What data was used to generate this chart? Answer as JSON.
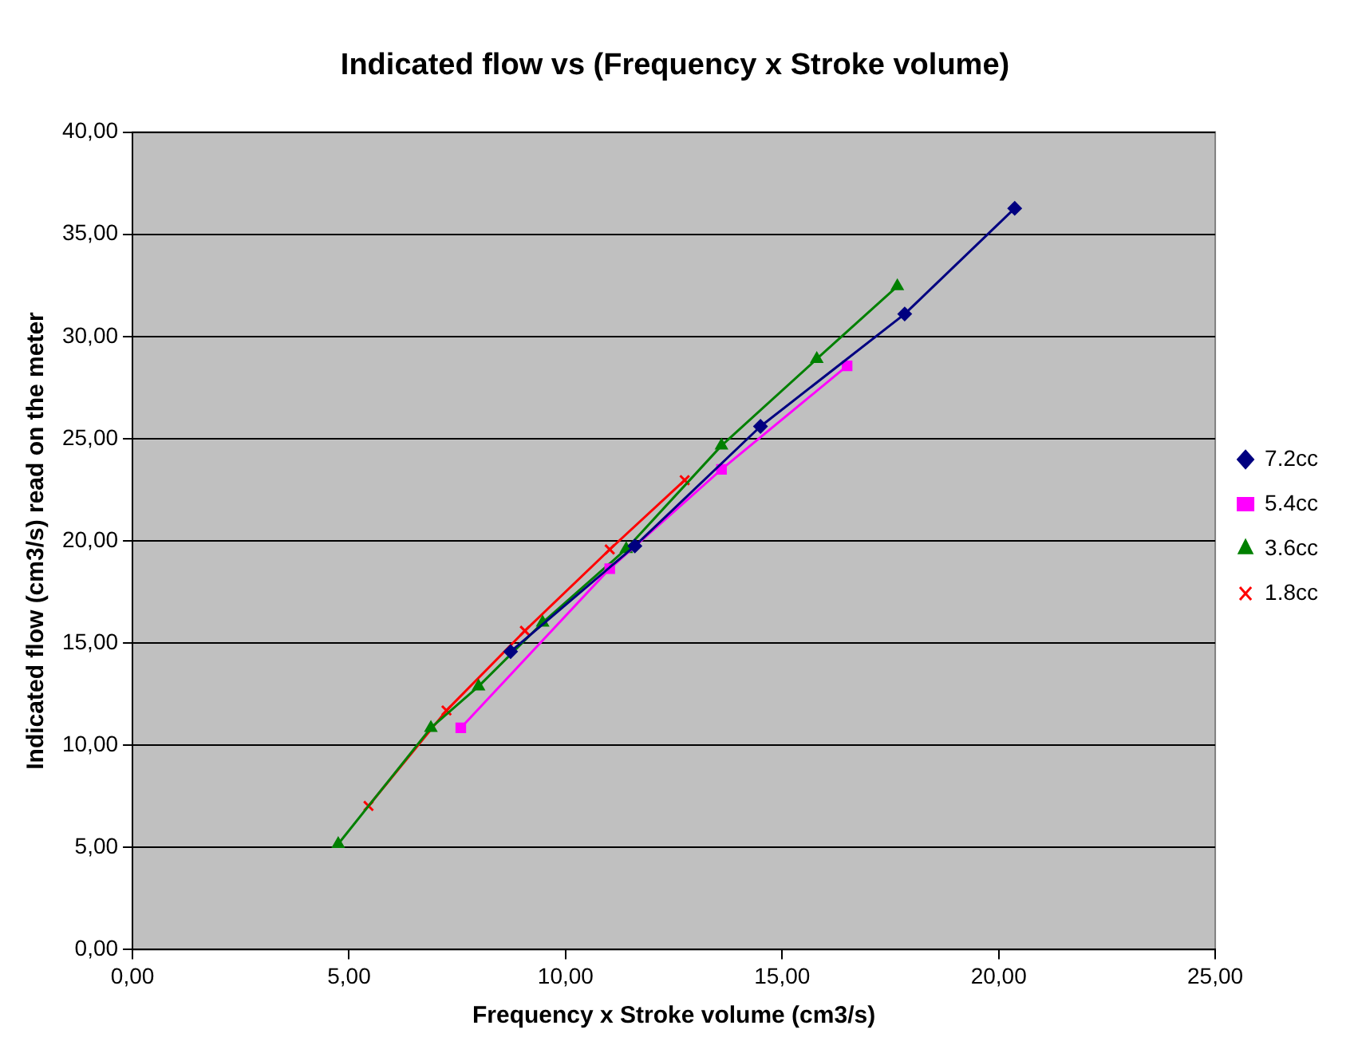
{
  "chart_data": {
    "type": "line",
    "title": "Indicated flow vs (Frequency x Stroke volume)",
    "xlabel": "Frequency x Stroke volume (cm3/s)",
    "ylabel": "Indicated flow (cm3/s) read on the meter",
    "xlim": [
      0,
      25
    ],
    "xticks": [
      {
        "value": 0,
        "label": "0,00"
      },
      {
        "value": 5,
        "label": "5,00"
      },
      {
        "value": 10,
        "label": "10,00"
      },
      {
        "value": 15,
        "label": "15,00"
      },
      {
        "value": 20,
        "label": "20,00"
      },
      {
        "value": 25,
        "label": "25,00"
      }
    ],
    "ylim": [
      0,
      40
    ],
    "yticks": [
      {
        "value": 0,
        "label": "0,00"
      },
      {
        "value": 5,
        "label": "5,00"
      },
      {
        "value": 10,
        "label": "10,00"
      },
      {
        "value": 15,
        "label": "15,00"
      },
      {
        "value": 20,
        "label": "20,00"
      },
      {
        "value": 25,
        "label": "25,00"
      },
      {
        "value": 30,
        "label": "30,00"
      },
      {
        "value": 35,
        "label": "35,00"
      },
      {
        "value": 40,
        "label": "40,00"
      }
    ],
    "grid": "y",
    "legend": "right",
    "line_style": "solid",
    "series": [
      {
        "name": "7.2cc",
        "color": "#000080",
        "marker": "diamond",
        "x": [
          8.73,
          11.6,
          14.5,
          17.83,
          20.37
        ],
        "values": [
          14.58,
          19.75,
          25.6,
          31.1,
          36.27
        ]
      },
      {
        "name": "5.4cc",
        "color": "#ff00ff",
        "marker": "square",
        "x": [
          7.58,
          11.02,
          13.6,
          16.5
        ],
        "values": [
          10.85,
          18.64,
          23.5,
          28.56
        ]
      },
      {
        "name": "3.6cc",
        "color": "#008000",
        "marker": "triangle",
        "x": [
          4.75,
          6.89,
          7.99,
          9.47,
          11.4,
          13.6,
          15.8,
          17.66
        ],
        "values": [
          5.17,
          10.85,
          12.88,
          16.0,
          19.6,
          24.66,
          28.9,
          32.46
        ]
      },
      {
        "name": "1.8cc",
        "color": "#ff0000",
        "marker": "cross",
        "x": [
          5.45,
          7.25,
          9.06,
          11.02,
          12.75
        ],
        "values": [
          7.03,
          11.7,
          15.6,
          19.58,
          22.97
        ]
      }
    ]
  }
}
